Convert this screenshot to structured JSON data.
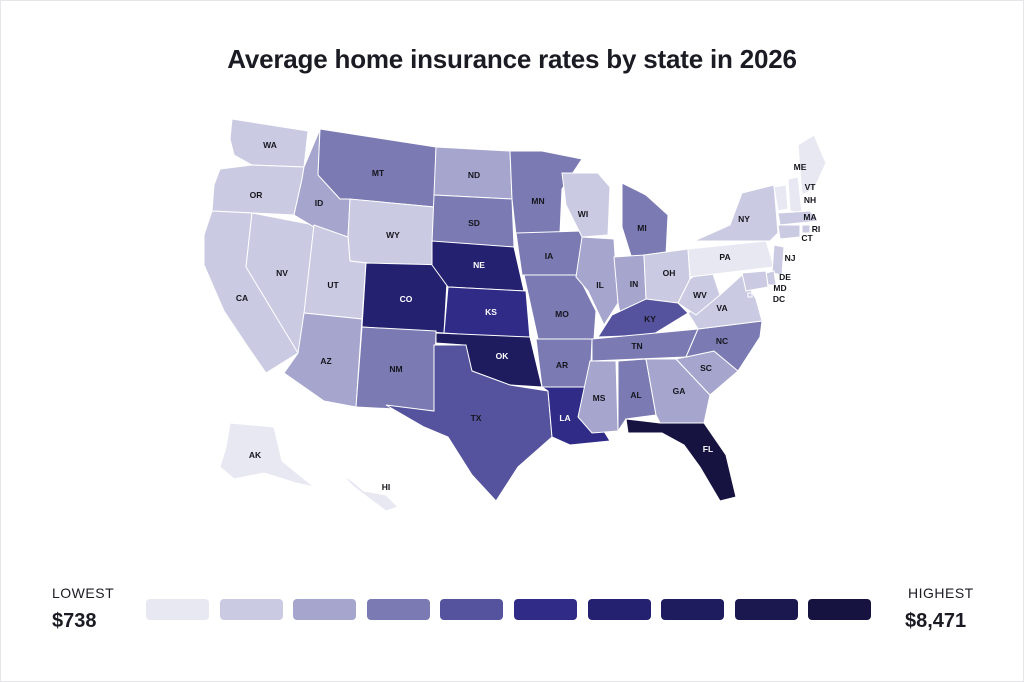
{
  "title": "Average home insurance rates by state in 2026",
  "legend": {
    "low_label": "LOWEST",
    "low_value": "$738",
    "high_label": "HIGHEST",
    "high_value": "$8,471",
    "colors": [
      "#e8e8f2",
      "#cacbe2",
      "#a6a5ce",
      "#7b7ab3",
      "#55539e",
      "#2f2b87",
      "#242170",
      "#1e1b5e",
      "#1b184f",
      "#161341"
    ]
  },
  "states": [
    {
      "abbr": "WA",
      "tier": 1
    },
    {
      "abbr": "OR",
      "tier": 1
    },
    {
      "abbr": "CA",
      "tier": 1
    },
    {
      "abbr": "NV",
      "tier": 1
    },
    {
      "abbr": "ID",
      "tier": 2
    },
    {
      "abbr": "MT",
      "tier": 3
    },
    {
      "abbr": "WY",
      "tier": 1
    },
    {
      "abbr": "UT",
      "tier": 1
    },
    {
      "abbr": "AZ",
      "tier": 2
    },
    {
      "abbr": "CO",
      "tier": 6
    },
    {
      "abbr": "NM",
      "tier": 3
    },
    {
      "abbr": "ND",
      "tier": 2
    },
    {
      "abbr": "SD",
      "tier": 3
    },
    {
      "abbr": "NE",
      "tier": 6
    },
    {
      "abbr": "KS",
      "tier": 5
    },
    {
      "abbr": "OK",
      "tier": 7
    },
    {
      "abbr": "TX",
      "tier": 4
    },
    {
      "abbr": "MN",
      "tier": 3
    },
    {
      "abbr": "IA",
      "tier": 3
    },
    {
      "abbr": "MO",
      "tier": 3
    },
    {
      "abbr": "AR",
      "tier": 3
    },
    {
      "abbr": "LA",
      "tier": 5
    },
    {
      "abbr": "WI",
      "tier": 1
    },
    {
      "abbr": "IL",
      "tier": 2
    },
    {
      "abbr": "MI",
      "tier": 3
    },
    {
      "abbr": "IN",
      "tier": 2
    },
    {
      "abbr": "OH",
      "tier": 1
    },
    {
      "abbr": "KY",
      "tier": 4
    },
    {
      "abbr": "TN",
      "tier": 3
    },
    {
      "abbr": "MS",
      "tier": 2
    },
    {
      "abbr": "AL",
      "tier": 3
    },
    {
      "abbr": "GA",
      "tier": 2
    },
    {
      "abbr": "FL",
      "tier": 9
    },
    {
      "abbr": "SC",
      "tier": 2
    },
    {
      "abbr": "NC",
      "tier": 3
    },
    {
      "abbr": "VA",
      "tier": 1
    },
    {
      "abbr": "WV",
      "tier": 1
    },
    {
      "abbr": "PA",
      "tier": 0
    },
    {
      "abbr": "NY",
      "tier": 1
    },
    {
      "abbr": "VT",
      "tier": 0
    },
    {
      "abbr": "NH",
      "tier": 0
    },
    {
      "abbr": "ME",
      "tier": 0
    },
    {
      "abbr": "MA",
      "tier": 1
    },
    {
      "abbr": "RI",
      "tier": 1
    },
    {
      "abbr": "CT",
      "tier": 1
    },
    {
      "abbr": "NJ",
      "tier": 1
    },
    {
      "abbr": "DE",
      "tier": 1
    },
    {
      "abbr": "MD",
      "tier": 1
    },
    {
      "abbr": "DC",
      "tier": 1
    },
    {
      "abbr": "AK",
      "tier": 0
    },
    {
      "abbr": "HI",
      "tier": 0
    }
  ]
}
